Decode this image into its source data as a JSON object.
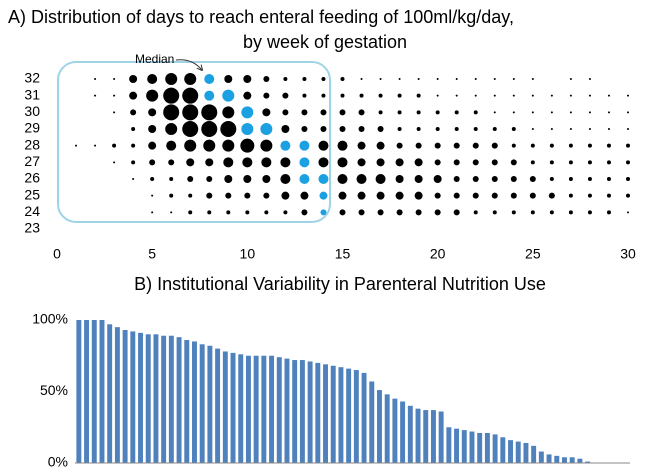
{
  "chart_data": [
    {
      "type": "bubble",
      "title": [
        "A)  Distribution of days to reach enteral feeding of 100ml/kg/day,",
        "by week of gestation"
      ],
      "annotation": "Median",
      "color": "#000000",
      "median_color": "#1ba1e2",
      "x": [
        1,
        2,
        3,
        4,
        5,
        6,
        7,
        8,
        9,
        10,
        11,
        12,
        13,
        14,
        15,
        16,
        17,
        18,
        19,
        20,
        21,
        22,
        23,
        24,
        25,
        26,
        27,
        28,
        29,
        30
      ],
      "rows": [
        {
          "y": 32,
          "sizes": [
            null,
            1,
            1,
            4,
            5,
            6,
            6,
            5,
            4,
            4,
            3,
            2,
            2,
            2,
            2,
            1,
            1,
            1,
            1,
            1,
            1,
            1,
            1,
            1,
            1,
            null,
            1,
            1,
            null,
            null
          ],
          "median": [
            8
          ]
        },
        {
          "y": 31,
          "sizes": [
            null,
            1,
            1,
            4,
            6,
            8,
            8,
            5,
            6,
            4,
            3,
            3,
            2,
            2,
            2,
            2,
            2,
            2,
            2,
            1,
            1,
            1,
            1,
            1,
            1,
            1,
            1,
            1,
            1,
            1
          ],
          "median": [
            8,
            9
          ]
        },
        {
          "y": 30,
          "sizes": [
            null,
            null,
            1,
            3,
            4,
            8,
            8,
            8,
            6,
            6,
            4,
            3,
            3,
            3,
            3,
            3,
            2,
            2,
            2,
            2,
            2,
            2,
            1,
            1,
            1,
            1,
            1,
            1,
            1,
            1
          ],
          "median": [
            10
          ]
        },
        {
          "y": 29,
          "sizes": [
            null,
            null,
            null,
            2,
            4,
            6,
            8,
            8,
            8,
            6,
            6,
            4,
            3,
            3,
            3,
            3,
            3,
            2,
            2,
            2,
            2,
            2,
            2,
            2,
            1,
            1,
            1,
            1,
            1,
            1
          ],
          "median": [
            10,
            11
          ]
        },
        {
          "y": 28,
          "sizes": [
            1,
            1,
            2,
            2,
            4,
            5,
            6,
            6,
            6,
            7,
            6,
            5,
            5,
            5,
            5,
            4,
            4,
            3,
            3,
            3,
            3,
            3,
            3,
            2,
            2,
            2,
            2,
            2,
            2,
            2
          ],
          "median": [
            12,
            13
          ]
        },
        {
          "y": 27,
          "sizes": [
            null,
            null,
            1,
            2,
            3,
            3,
            4,
            4,
            5,
            5,
            5,
            5,
            5,
            5,
            5,
            4,
            4,
            4,
            4,
            3,
            3,
            3,
            3,
            3,
            2,
            2,
            2,
            2,
            2,
            2
          ],
          "median": [
            13
          ]
        },
        {
          "y": 26,
          "sizes": [
            null,
            null,
            null,
            1,
            2,
            2,
            3,
            3,
            4,
            4,
            4,
            5,
            5,
            5,
            5,
            5,
            5,
            4,
            4,
            4,
            3,
            3,
            3,
            3,
            3,
            2,
            2,
            2,
            2,
            2
          ],
          "median": [
            13,
            14
          ]
        },
        {
          "y": 25,
          "sizes": [
            null,
            null,
            null,
            null,
            1,
            2,
            2,
            3,
            3,
            3,
            3,
            4,
            4,
            4,
            4,
            4,
            4,
            4,
            4,
            3,
            3,
            3,
            3,
            3,
            3,
            3,
            2,
            2,
            2,
            2
          ],
          "median": [
            14
          ]
        },
        {
          "y": 24,
          "sizes": [
            null,
            null,
            null,
            null,
            1,
            1,
            2,
            2,
            2,
            2,
            2,
            2,
            3,
            3,
            3,
            3,
            3,
            3,
            3,
            3,
            3,
            2,
            2,
            2,
            2,
            2,
            2,
            2,
            2,
            1
          ],
          "median": [
            14
          ]
        }
      ],
      "xlim": [
        0,
        30
      ],
      "xticks": [
        0,
        5,
        10,
        15,
        20,
        25,
        30
      ],
      "ylim": [
        23,
        32
      ],
      "yticks": [
        23,
        24,
        25,
        26,
        27,
        28,
        29,
        30,
        31,
        32
      ]
    },
    {
      "type": "bar",
      "title": "B) Institutional Variability in Parenteral Nutrition Use",
      "color": "#4f81bd",
      "values": [
        100,
        100,
        100,
        100,
        97,
        95,
        93,
        92,
        91,
        90,
        90,
        89,
        89,
        88,
        86,
        85,
        83,
        82,
        80,
        78,
        77,
        76,
        75,
        75,
        75,
        75,
        74,
        73,
        72,
        72,
        71,
        70,
        69,
        68,
        67,
        66,
        65,
        63,
        57,
        51,
        48,
        45,
        43,
        40,
        38,
        37,
        37,
        36,
        25,
        24,
        23,
        22,
        21,
        21,
        20,
        18,
        16,
        15,
        14,
        12,
        8,
        6,
        5,
        4,
        4,
        3,
        1,
        0,
        0,
        0,
        0,
        0
      ],
      "ylim": [
        0,
        100
      ],
      "yticks": [
        {
          "value": 0,
          "label": "0%"
        },
        {
          "value": 50,
          "label": "50%"
        },
        {
          "value": 100,
          "label": "100%"
        }
      ]
    }
  ]
}
